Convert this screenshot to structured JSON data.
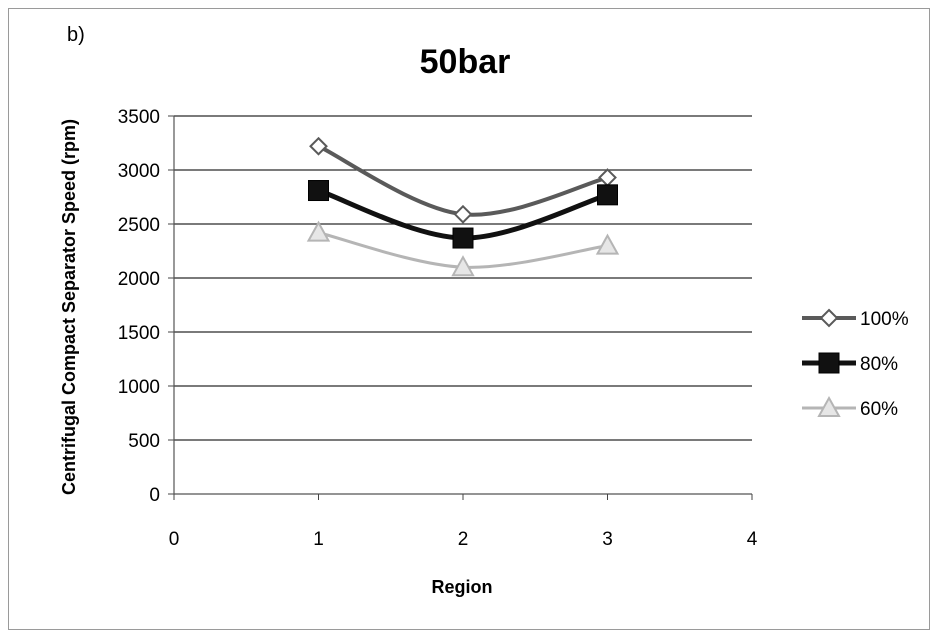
{
  "panel_label": "b)",
  "chart_data": {
    "type": "line",
    "title": "50bar",
    "xlabel": "Region",
    "ylabel": "Centrifugal Compact Separator Speed (rpm)",
    "xlim": [
      0,
      4
    ],
    "ylim": [
      0,
      3500
    ],
    "x_ticks": [
      0,
      1,
      2,
      3,
      4
    ],
    "y_ticks": [
      0,
      500,
      1000,
      1500,
      2000,
      2500,
      3000,
      3500
    ],
    "grid": "horizontal",
    "legend_position": "right",
    "x": [
      1,
      2,
      3
    ],
    "series": [
      {
        "name": "100%",
        "values": [
          3220,
          2590,
          2930
        ],
        "marker": "diamond",
        "color": "#5a5a5a",
        "line_width": 4
      },
      {
        "name": "80%",
        "values": [
          2810,
          2370,
          2770
        ],
        "marker": "square",
        "color": "#111111",
        "line_width": 5
      },
      {
        "name": "60%",
        "values": [
          2420,
          2100,
          2300
        ],
        "marker": "triangle",
        "color": "#b5b5b5",
        "line_width": 3
      }
    ]
  }
}
